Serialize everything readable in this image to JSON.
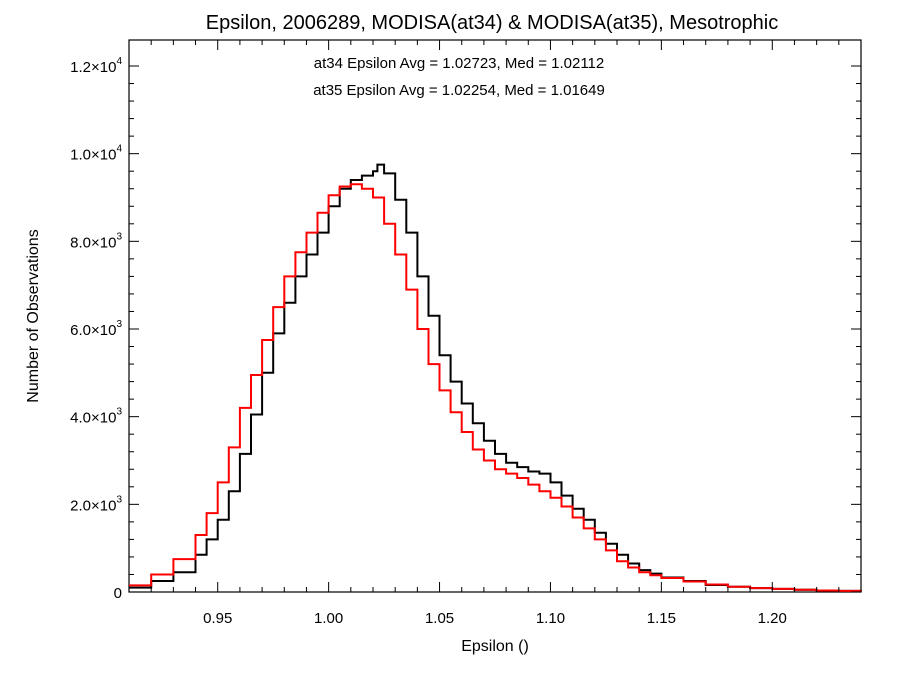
{
  "chart_data": {
    "type": "line",
    "title": "Epsilon, 2006289, MODISA(at34) & MODISA(at35), Mesotrophic",
    "xlabel": "Epsilon ()",
    "ylabel": "Number of Observations",
    "xlim": [
      0.91,
      1.24
    ],
    "ylim": [
      0,
      12000
    ],
    "x_ticks": [
      {
        "value": 0.95,
        "label": "0.95"
      },
      {
        "value": 1.0,
        "label": "1.00"
      },
      {
        "value": 1.05,
        "label": "1.05"
      },
      {
        "value": 1.1,
        "label": "1.10"
      },
      {
        "value": 1.15,
        "label": "1.15"
      },
      {
        "value": 1.2,
        "label": "1.20"
      }
    ],
    "y_ticks": [
      {
        "value": 0,
        "mantissa": "0",
        "exponent": ""
      },
      {
        "value": 2000,
        "mantissa": "2.0×10",
        "exponent": "3"
      },
      {
        "value": 4000,
        "mantissa": "4.0×10",
        "exponent": "3"
      },
      {
        "value": 6000,
        "mantissa": "6.0×10",
        "exponent": "3"
      },
      {
        "value": 8000,
        "mantissa": "8.0×10",
        "exponent": "3"
      },
      {
        "value": 10000,
        "mantissa": "1.0×10",
        "exponent": "4"
      },
      {
        "value": 12000,
        "mantissa": "1.2×10",
        "exponent": "4"
      }
    ],
    "annotations": [
      {
        "text": "at34 Epsilon Avg = 1.02723, Med = 1.02112",
        "color": "#000000"
      },
      {
        "text": "at35 Epsilon Avg = 1.02254, Med = 1.01649",
        "color": "#ff0000"
      }
    ],
    "series": [
      {
        "color": "#000000",
        "step": true,
        "x": [
          0.91,
          0.92,
          0.93,
          0.94,
          0.945,
          0.95,
          0.955,
          0.96,
          0.965,
          0.97,
          0.975,
          0.98,
          0.985,
          0.99,
          0.995,
          1.0,
          1.005,
          1.01,
          1.015,
          1.02,
          1.022,
          1.025,
          1.03,
          1.035,
          1.04,
          1.045,
          1.05,
          1.055,
          1.06,
          1.065,
          1.07,
          1.075,
          1.08,
          1.085,
          1.09,
          1.095,
          1.1,
          1.105,
          1.11,
          1.115,
          1.12,
          1.125,
          1.13,
          1.135,
          1.14,
          1.145,
          1.15,
          1.16,
          1.17,
          1.18,
          1.19,
          1.2,
          1.21,
          1.22,
          1.23,
          1.24
        ],
        "y": [
          100,
          250,
          450,
          850,
          1200,
          1650,
          2300,
          3150,
          4050,
          5000,
          5900,
          6600,
          7200,
          7700,
          8200,
          8800,
          9200,
          9400,
          9500,
          9600,
          9750,
          9550,
          8950,
          8200,
          7200,
          6300,
          5400,
          4800,
          4300,
          3850,
          3450,
          3150,
          2950,
          2850,
          2750,
          2700,
          2500,
          2200,
          1900,
          1650,
          1350,
          1100,
          850,
          650,
          500,
          420,
          330,
          250,
          160,
          120,
          90,
          70,
          50,
          35,
          25,
          15
        ]
      },
      {
        "color": "#ff0000",
        "step": true,
        "x": [
          0.91,
          0.92,
          0.93,
          0.94,
          0.945,
          0.95,
          0.955,
          0.96,
          0.965,
          0.97,
          0.975,
          0.98,
          0.985,
          0.99,
          0.995,
          1.0,
          1.005,
          1.01,
          1.015,
          1.02,
          1.025,
          1.03,
          1.035,
          1.04,
          1.045,
          1.05,
          1.055,
          1.06,
          1.065,
          1.07,
          1.075,
          1.08,
          1.085,
          1.09,
          1.095,
          1.1,
          1.105,
          1.11,
          1.115,
          1.12,
          1.125,
          1.13,
          1.135,
          1.14,
          1.145,
          1.15,
          1.16,
          1.17,
          1.18,
          1.19,
          1.2,
          1.21,
          1.22,
          1.23,
          1.24
        ],
        "y": [
          150,
          400,
          750,
          1300,
          1800,
          2500,
          3300,
          4200,
          4950,
          5750,
          6500,
          7200,
          7750,
          8200,
          8650,
          9050,
          9250,
          9300,
          9200,
          9000,
          8400,
          7700,
          6900,
          6000,
          5200,
          4600,
          4100,
          3650,
          3250,
          3000,
          2800,
          2700,
          2600,
          2450,
          2300,
          2150,
          1950,
          1700,
          1450,
          1200,
          950,
          700,
          560,
          450,
          380,
          320,
          240,
          170,
          120,
          90,
          70,
          50,
          35,
          25,
          15
        ]
      }
    ]
  }
}
